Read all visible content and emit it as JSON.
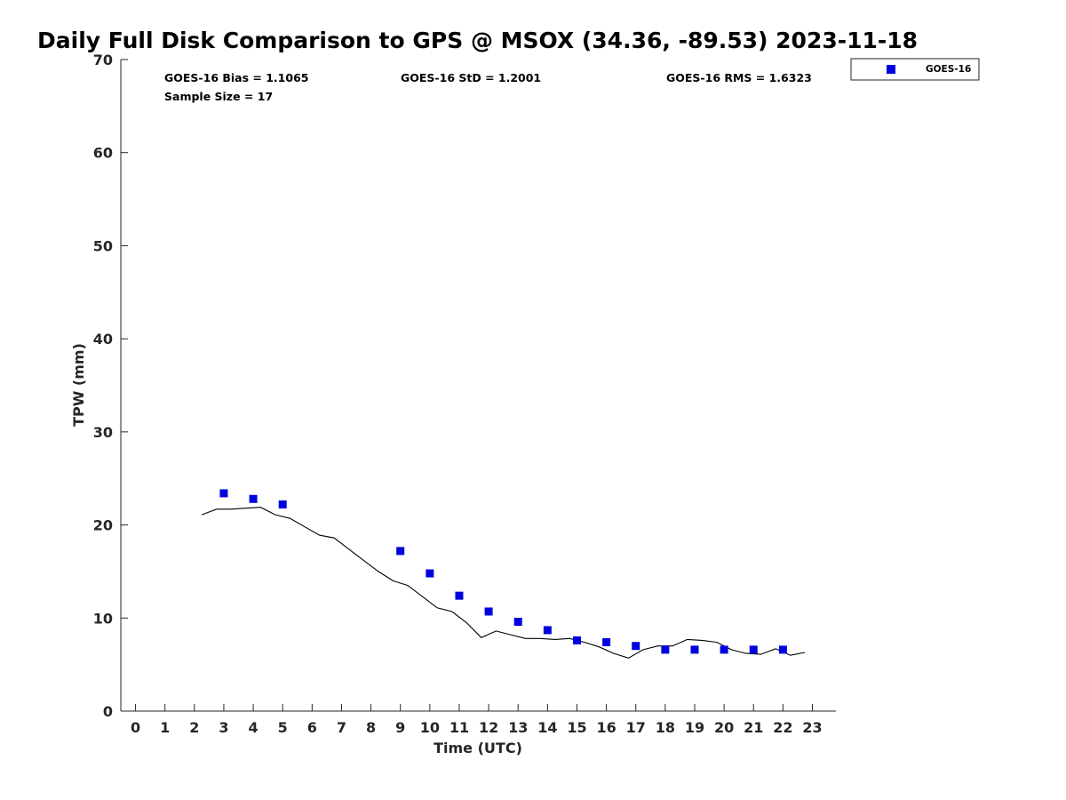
{
  "chart_data": {
    "type": "scatter",
    "title": "Daily Full Disk Comparison to GPS @ MSOX (34.36, -89.53) 2023-11-18",
    "xlabel": "Time (UTC)",
    "ylabel": "TPW (mm)",
    "xlim": [
      -0.5,
      23.8
    ],
    "ylim": [
      0,
      70
    ],
    "xticks": [
      0,
      1,
      2,
      3,
      4,
      5,
      6,
      7,
      8,
      9,
      10,
      11,
      12,
      13,
      14,
      15,
      16,
      17,
      18,
      19,
      20,
      21,
      22,
      23
    ],
    "yticks": [
      0,
      10,
      20,
      30,
      40,
      50,
      60,
      70
    ],
    "grid": false,
    "legend_position": "top-right",
    "stats": {
      "bias": "GOES-16 Bias = 1.1065",
      "std": "GOES-16 StD = 1.2001",
      "rms": "GOES-16 RMS = 1.6323",
      "sample": "Sample Size = 17"
    },
    "series": [
      {
        "name": "GOES-16",
        "kind": "scatter",
        "marker": "square",
        "color": "#0000dd",
        "x": [
          3,
          4,
          5,
          9,
          10,
          11,
          12,
          13,
          14,
          15,
          16,
          17,
          18,
          19,
          20,
          21,
          22
        ],
        "y": [
          23.4,
          22.8,
          22.2,
          17.2,
          14.8,
          12.4,
          10.7,
          9.6,
          8.7,
          7.6,
          7.4,
          7.0,
          6.6,
          6.6,
          6.6,
          6.6,
          6.6
        ]
      },
      {
        "kind": "line",
        "color": "#000000",
        "x": [
          2.25,
          2.75,
          3.25,
          3.75,
          4.25,
          4.75,
          5.25,
          5.75,
          6.25,
          6.75,
          7.25,
          7.75,
          8.25,
          8.75,
          9.25,
          9.75,
          10.25,
          10.75,
          11.25,
          11.75,
          12.25,
          12.75,
          13.25,
          13.75,
          14.25,
          14.75,
          15.25,
          15.75,
          16.25,
          16.75,
          17.25,
          17.75,
          18.25,
          18.75,
          19.25,
          19.75,
          20.25,
          20.75,
          21.25,
          21.75,
          22.25,
          22.75
        ],
        "y": [
          21.1,
          21.7,
          21.7,
          21.8,
          21.9,
          21.1,
          20.7,
          19.8,
          18.9,
          18.6,
          17.4,
          16.2,
          15.0,
          14.0,
          13.5,
          12.3,
          11.1,
          10.7,
          9.5,
          7.9,
          8.6,
          8.2,
          7.8,
          7.8,
          7.7,
          7.8,
          7.4,
          6.9,
          6.2,
          5.7,
          6.6,
          7.0,
          7.0,
          7.7,
          7.6,
          7.4,
          6.6,
          6.2,
          6.1,
          6.7,
          6.0,
          6.3
        ]
      }
    ]
  }
}
